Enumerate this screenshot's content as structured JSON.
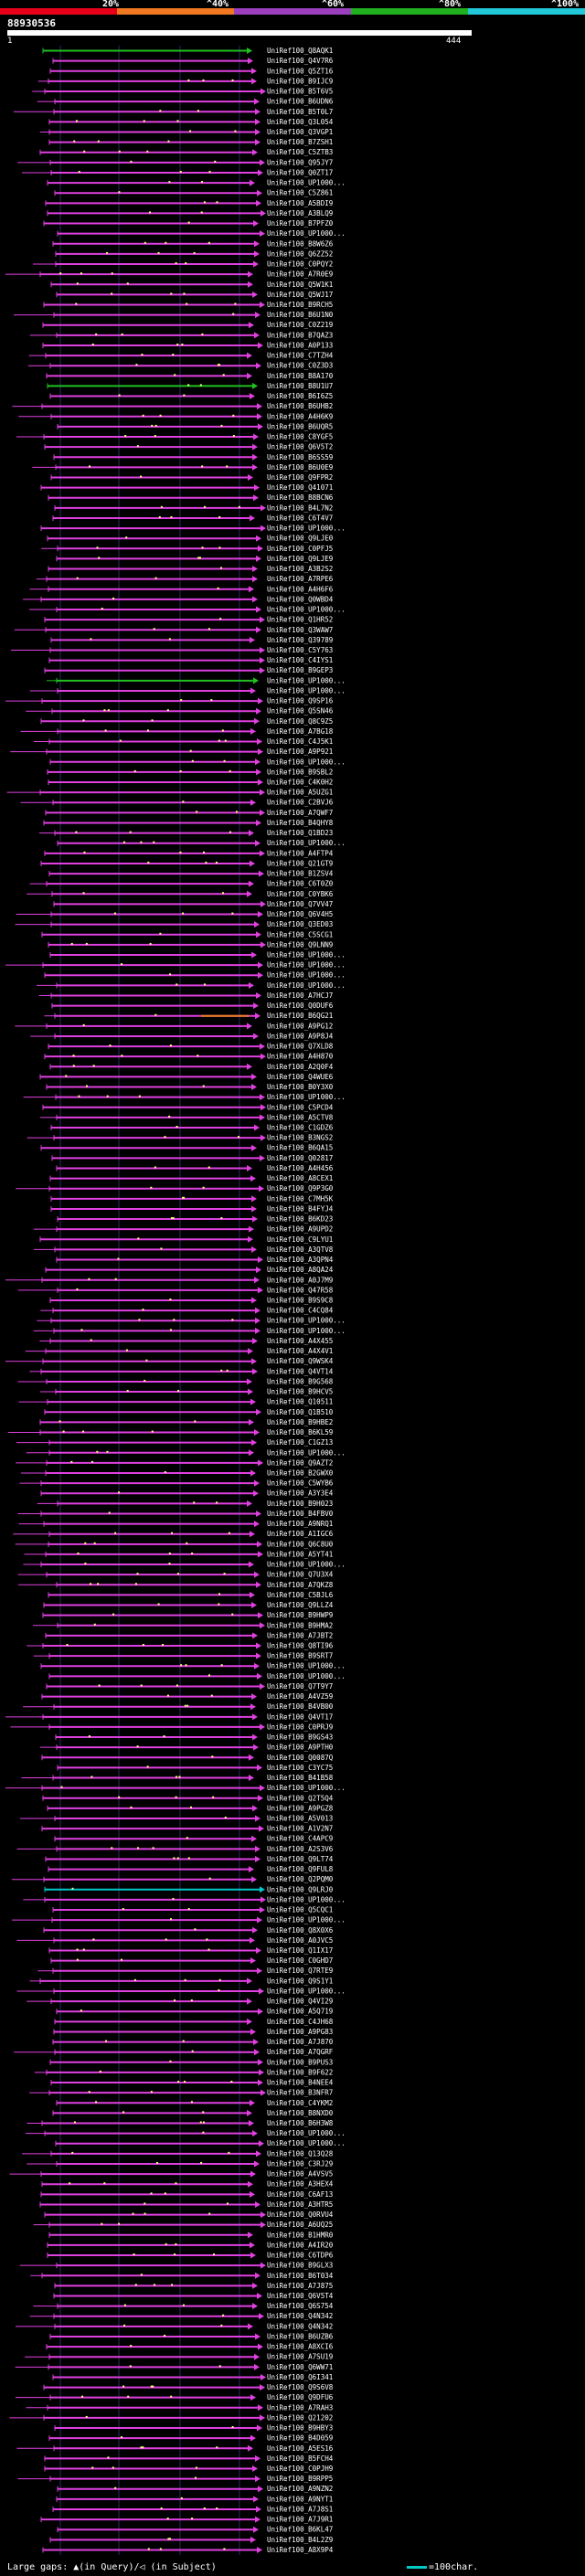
{
  "legend": {
    "labels": [
      "20%",
      "^40%",
      "^60%",
      "^80%",
      "^100%"
    ],
    "colors": [
      "#e8001a",
      "#f07820",
      "#9b3fbf",
      "#20b020",
      "#20c8d8"
    ]
  },
  "query": {
    "id": "88930536",
    "start_label": "1",
    "end_label": "444"
  },
  "footer": {
    "left_text": "Large gaps: ▲(in Query)/◁ (in Subject)",
    "right_text": "=100char."
  },
  "colors": {
    "background": "#000000",
    "hit_magenta": "#e040e0",
    "hit_green": "#20c020",
    "hit_orange": "#f08020",
    "hit_teal": "#00c8c8",
    "gap_marker": "#ffff80",
    "gridline": "#2a2a66"
  },
  "hits": [
    "UniRef100_Q8AQK1",
    "UniRef100_Q4V7R6",
    "UniRef100_Q5ZT16",
    "UniRef100_B9IJC9",
    "UniRef100_B5T6V5",
    "UniRef100_B6UDN6",
    "UniRef100_B5T0L7",
    "UniRef100_Q3L054",
    "UniRef100_Q3VGP1",
    "UniRef100_B7ZSH1",
    "UniRef100_C5ZTB3",
    "UniRef100_Q95JY7",
    "UniRef100_Q0ZT17",
    "UniRef100_UP1000...",
    "UniRef100_C5Z861",
    "UniRef100_A5BDI9",
    "UniRef100_A3BLQ9",
    "UniRef100_B7PFZ0",
    "UniRef100_UP1000...",
    "UniRef100_B8W6Z6",
    "UniRef100_Q6ZZ52",
    "UniRef100_C0PQY2",
    "UniRef100_A7R0E9",
    "UniRef100_Q5W1K1",
    "UniRef100_Q5WJ17",
    "UniRef100_B9RCH5",
    "UniRef100_B6U1N0",
    "UniRef100_C0Z219",
    "UniRef100_B7QAZ3",
    "UniRef100_A0P133",
    "UniRef100_C7TZH4",
    "UniRef100_C0Z3D3",
    "UniRef100_B8A170",
    "UniRef100_B8U1U7",
    "UniRef100_B6I6Z5",
    "UniRef100_B6UHB2",
    "UniRef100_A4H6K9",
    "UniRef100_B6UQR5",
    "UniRef100_C8YGF5",
    "UniRef100_Q6V5T2",
    "UniRef100_B6SS59",
    "UniRef100_B6U0E9",
    "UniRef100_Q9FPR2",
    "UniRef100_Q41071",
    "UniRef100_B8BCN6",
    "UniRef100_B4L7N2",
    "UniRef100_C6T4V7",
    "UniRef100_UP1000...",
    "UniRef100_Q9LJE0",
    "UniRef100_C0PFJ5",
    "UniRef100_Q9LJE9",
    "UniRef100_A3B2S2",
    "UniRef100_A7RPE6",
    "UniRef100_A4H6F6",
    "UniRef100_Q0WBD4",
    "UniRef100_UP1000...",
    "UniRef100_Q1HR52",
    "UniRef100_Q3WAW7",
    "UniRef100_Q39789",
    "UniRef100_C5Y763",
    "UniRef100_C4IYS1",
    "UniRef100_B9GEP3",
    "UniRef100_UP1000...",
    "UniRef100_UP1000...",
    "UniRef100_Q9SP16",
    "UniRef100_Q5SN46",
    "UniRef100_Q8C9Z5",
    "UniRef100_A7BG18",
    "UniRef100_C4J5K1",
    "UniRef100_A9P921",
    "UniRef100_UP1000...",
    "UniRef100_B9SBL2",
    "UniRef100_C4K0H2",
    "UniRef100_A5UZG1",
    "UniRef100_C2BVJ6",
    "UniRef100_A7QWF7",
    "UniRef100_B4QHY8",
    "UniRef100_Q1BD23",
    "UniRef100_UP1000...",
    "UniRef100_A4FTP4",
    "UniRef100_Q21GT9",
    "UniRef100_B1ZSV4",
    "UniRef100_C6T0Z0",
    "UniRef100_C0YBK6",
    "UniRef100_Q7VV47",
    "UniRef100_Q6V4H5",
    "UniRef100_Q3ED03",
    "UniRef100_C5SCG1",
    "UniRef100_Q9LNN9",
    "UniRef100_UP1000...",
    "UniRef100_UP1000...",
    "UniRef100_UP1000...",
    "UniRef100_UP1000...",
    "UniRef100_A7HCJ7",
    "UniRef100_Q0DUF6",
    "UniRef100_B6QG21",
    "UniRef100_A9PG12",
    "UniRef100_A9P8J4",
    "UniRef100_Q7XLD8",
    "UniRef100_A4H870",
    "UniRef100_A2Q0F4",
    "UniRef100_Q4WUE6",
    "UniRef100_B0Y3X0",
    "UniRef100_UP1000...",
    "UniRef100_C5PCD4",
    "UniRef100_A5CTV8",
    "UniRef100_C1GDZ6",
    "UniRef100_B3NGS2",
    "UniRef100_B6QA15",
    "UniRef100_Q02817",
    "UniRef100_A4H456",
    "UniRef100_A8CEX1",
    "UniRef100_Q9P3G0",
    "UniRef100_C7MH5K",
    "UniRef100_B4FYJ4",
    "UniRef100_B6KD23",
    "UniRef100_A9UPD2",
    "UniRef100_C9LYU1",
    "UniRef100_A3QTV8",
    "UniRef100_A3QPN4",
    "UniRef100_A8QA24",
    "UniRef100_A0J7M9",
    "UniRef100_Q47R58",
    "UniRef100_B9S9C8",
    "UniRef100_C4CQ84",
    "UniRef100_UP1000...",
    "UniRef100_UP1000...",
    "UniRef100_A4X455",
    "UniRef100_A4X4V1",
    "UniRef100_Q9WSK4",
    "UniRef100_Q4VT14",
    "UniRef100_B9G568",
    "UniRef100_B9HCV5",
    "UniRef100_Q10511",
    "UniRef100_Q1B510",
    "UniRef100_B9HBE2",
    "UniRef100_B6KL59",
    "UniRef100_C1GZ13",
    "UniRef100_UP1000...",
    "UniRef100_Q9AZT2",
    "UniRef100_B2GWX0",
    "UniRef100_C5WYB6",
    "UniRef100_A3Y3E4",
    "UniRef100_B9H023",
    "UniRef100_B4FBV0",
    "UniRef100_A9NRQ1",
    "UniRef100_A1IGC6",
    "UniRef100_Q6C8U0",
    "UniRef100_A5YT41",
    "UniRef100_UP1000...",
    "UniRef100_Q7U3X4",
    "UniRef100_A7QKZ8",
    "UniRef100_C5BJL6",
    "UniRef100_Q9LLZ4",
    "UniRef100_B9HWP9",
    "UniRef100_B9HMA2",
    "UniRef100_A7JBT2",
    "UniRef100_Q8TI96",
    "UniRef100_B9SRT7",
    "UniRef100_UP1000...",
    "UniRef100_UP1000...",
    "UniRef100_Q7T9Y7",
    "UniRef100_A4VZ59",
    "UniRef100_B4VB00",
    "UniRef100_Q4VT17",
    "UniRef100_C0PRJ9",
    "UniRef100_B9GS43",
    "UniRef100_A9PTH0",
    "UniRef100_Q0087Q",
    "UniRef100_C3YC75",
    "UniRef100_B41B58",
    "UniRef100_UP1000...",
    "UniRef100_Q2T5Q4",
    "UniRef100_A9PGZ8",
    "UniRef100_A5V013",
    "UniRef100_A1V2N7",
    "UniRef100_C4APC9",
    "UniRef100_A2S3V6",
    "UniRef100_Q9LT74",
    "UniRef100_Q9FUL8",
    "UniRef100_Q2PQM0",
    "UniRef100_Q9LRJ0",
    "UniRef100_UP1000...",
    "UniRef100_Q5CQC1",
    "UniRef100_UP1000...",
    "UniRef100_Q8X0X6",
    "UniRef100_A0JVC5",
    "UniRef100_Q1IX17",
    "UniRef100_C0GHD7",
    "UniRef100_Q7RTE9",
    "UniRef100_Q9S1Y1",
    "UniRef100_UP1000...",
    "UniRef100_Q4VI29",
    "UniRef100_A5Q719",
    "UniRef100_C4JH68",
    "UniRef100_A9PG83",
    "UniRef100_A7J870",
    "UniRef100_A7QGRF",
    "UniRef100_B9PUS3",
    "UniRef100_B9F622",
    "UniRef100_B4NEE4",
    "UniRef100_B3NFR7",
    "UniRef100_C4YKM2",
    "UniRef100_B8NXD0",
    "UniRef100_B6H3W8",
    "UniRef100_UP1000...",
    "UniRef100_UP1000...",
    "UniRef100_Q13Q28",
    "UniRef100_C3RJ29",
    "UniRef100_A4VSV5",
    "UniRef100_A3HEX4",
    "UniRef100_C6AF13",
    "UniRef100_A3HTR5",
    "UniRef100_Q0RVU4",
    "UniRef100_A6UQ25",
    "UniRef100_B1HMR0",
    "UniRef100_A4IR20",
    "UniRef100_C6TDP6",
    "UniRef100_B9GLX3",
    "UniRef100_B6T034",
    "UniRef100_A7J875",
    "UniRef100_Q6V5T4",
    "UniRef100_Q6S754",
    "UniRef100_Q4N342",
    "UniRef100_Q4N342",
    "UniRef100_B6UZB6",
    "UniRef100_A8XCI6",
    "UniRef100_A7SU19",
    "UniRef100_Q6WW71",
    "UniRef100_Q6I341",
    "UniRef100_Q9S6V8",
    "UniRef100_Q9DFU6",
    "UniRef100_A7RAH3",
    "UniRef100_Q21202",
    "UniRef100_B9HBY3",
    "UniRef100_B4D059",
    "UniRef100_A5ES16",
    "UniRef100_B5FCH4",
    "UniRef100_C0PJH9",
    "UniRef100_B9RPP5",
    "UniRef100_A9NZN2",
    "UniRef100_A9NYT1",
    "UniRef100_A7J8S1",
    "UniRef100_A7J9R1",
    "UniRef100_B6KL47",
    "UniRef100_B4L2Z9",
    "UniRef100_A8X9P4"
  ]
}
